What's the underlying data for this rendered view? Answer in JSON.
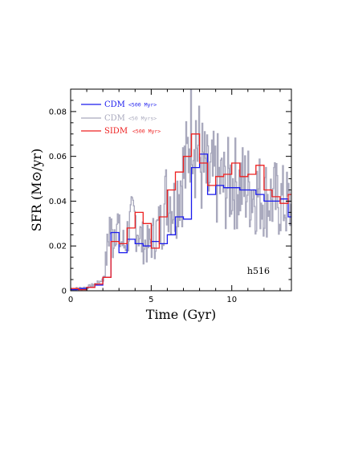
{
  "chart_data": {
    "type": "line",
    "xlabel": "Time (Gyr)",
    "ylabel": "SFR (M⊙/yr)",
    "xlim": [
      0,
      13.7
    ],
    "ylim": [
      0,
      0.09
    ],
    "x_ticks": [
      0,
      5,
      10
    ],
    "y_ticks": [
      0,
      0.02,
      0.04,
      0.06,
      0.08
    ],
    "x_tick_labels": [
      "0",
      "5",
      "10"
    ],
    "y_tick_labels": [
      "0",
      "0.02",
      "0.04",
      "0.06",
      "0.08"
    ],
    "annotation": "h516",
    "legend_position": "top-left",
    "series": [
      {
        "name": "CDM",
        "note": "<500 Myr>",
        "color": "#1a1aee",
        "style": "step",
        "bin_edges": [
          0,
          0.5,
          1.0,
          1.5,
          2.0,
          2.5,
          3.0,
          3.5,
          4.0,
          4.5,
          5.0,
          5.5,
          6.0,
          6.5,
          7.0,
          7.5,
          8.0,
          8.5,
          9.0,
          9.5,
          10.0,
          10.5,
          11.0,
          11.5,
          12.0,
          12.5,
          13.0,
          13.5,
          13.7
        ],
        "values": [
          0.0005,
          0.001,
          0.0015,
          0.0025,
          0.006,
          0.026,
          0.017,
          0.023,
          0.021,
          0.02,
          0.022,
          0.021,
          0.025,
          0.033,
          0.032,
          0.055,
          0.061,
          0.043,
          0.047,
          0.046,
          0.046,
          0.045,
          0.045,
          0.043,
          0.04,
          0.04,
          0.041,
          0.033
        ]
      },
      {
        "name": "CDM",
        "note": "<50 Myrs>",
        "color": "#a9a9bd",
        "style": "noisy",
        "t": [
          0,
          0.5,
          1.0,
          1.5,
          2.0,
          2.2,
          2.4,
          2.6,
          2.8,
          3.0,
          3.3,
          3.6,
          4.0,
          4.4,
          4.8,
          5.2,
          5.6,
          6.0,
          6.4,
          6.8,
          7.2,
          7.5,
          7.7,
          8.0,
          8.5,
          9.0,
          9.5,
          10.0,
          10.5,
          11.0,
          11.5,
          12.0,
          12.5,
          13.0,
          13.5,
          13.7
        ],
        "values": [
          0.0005,
          0.001,
          0.0015,
          0.003,
          0.005,
          0.015,
          0.03,
          0.022,
          0.035,
          0.024,
          0.02,
          0.028,
          0.032,
          0.022,
          0.02,
          0.025,
          0.03,
          0.045,
          0.038,
          0.05,
          0.055,
          0.09,
          0.072,
          0.058,
          0.048,
          0.05,
          0.046,
          0.049,
          0.047,
          0.046,
          0.044,
          0.042,
          0.041,
          0.04,
          0.038,
          0.035
        ]
      },
      {
        "name": "SIDM",
        "note": "<500 Myr>",
        "color": "#ee2020",
        "style": "step",
        "bin_edges": [
          0,
          0.5,
          1.0,
          1.5,
          2.0,
          2.5,
          3.0,
          3.5,
          4.0,
          4.5,
          5.0,
          5.5,
          6.0,
          6.5,
          7.0,
          7.5,
          8.0,
          8.5,
          9.0,
          9.5,
          10.0,
          10.5,
          11.0,
          11.5,
          12.0,
          12.5,
          13.0,
          13.5,
          13.7
        ],
        "values": [
          0.001,
          0.0005,
          0.0015,
          0.003,
          0.006,
          0.022,
          0.021,
          0.028,
          0.035,
          0.03,
          0.019,
          0.033,
          0.045,
          0.053,
          0.06,
          0.07,
          0.057,
          0.047,
          0.051,
          0.052,
          0.057,
          0.051,
          0.052,
          0.056,
          0.045,
          0.042,
          0.039,
          0.043
        ]
      }
    ]
  }
}
